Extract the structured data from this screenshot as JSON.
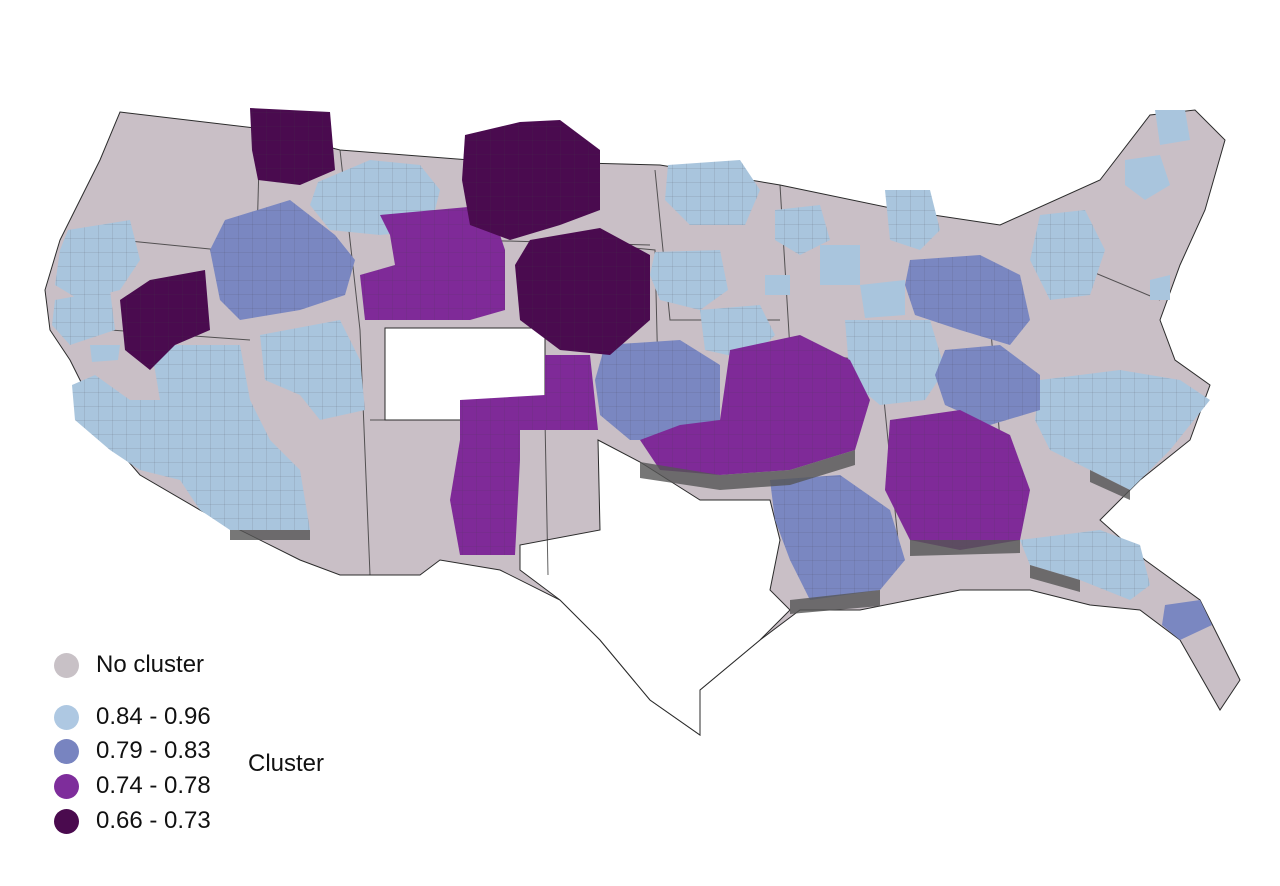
{
  "map": {
    "colors": {
      "no_cluster": "#c9bfc6",
      "cluster_high": "#a9c5dd",
      "cluster_mid_high": "#7a87c1",
      "cluster_mid_low": "#7f2a98",
      "cluster_low": "#4a0b4f",
      "state_border": "#2b2b2b",
      "extrusion_shadow": "#555555"
    }
  },
  "legend": {
    "no_cluster_label": "No cluster",
    "classes": [
      {
        "label": "0.84 - 0.96",
        "color": "#aec8e2"
      },
      {
        "label": "0.79 - 0.83",
        "color": "#7884c0"
      },
      {
        "label": "0.74 - 0.78",
        "color": "#7e2d9b"
      },
      {
        "label": "0.66 - 0.73",
        "color": "#4a0a4e"
      }
    ],
    "no_cluster_color": "#c8c1c6",
    "title": "Cluster"
  }
}
